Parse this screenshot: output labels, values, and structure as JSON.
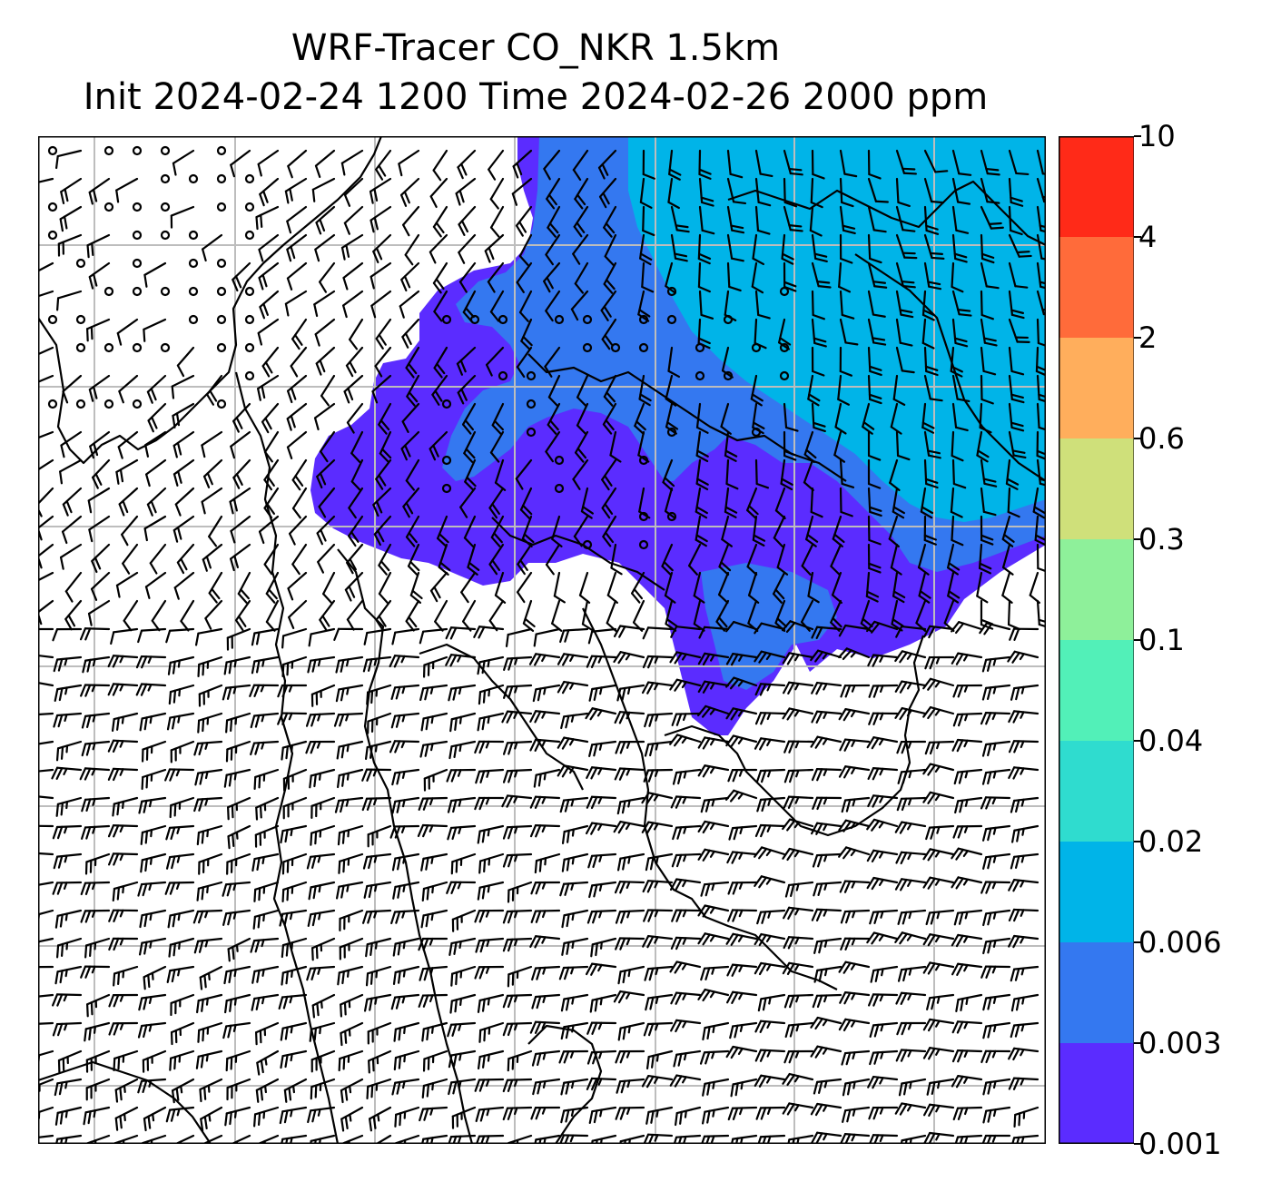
{
  "title_line1": "WRF-Tracer CO_NKR 1.5km",
  "title_line2": "Init 2024-02-24 1200 Time 2024-02-26 2000 ppm",
  "colorbar": {
    "levels": [
      "0.001",
      "0.003",
      "0.006",
      "0.02",
      "0.04",
      "0.1",
      "0.3",
      "0.6",
      "2",
      "4",
      "10"
    ],
    "colors": [
      "#5b2cff",
      "#3478f0",
      "#00b4e8",
      "#2fdccf",
      "#52f0b8",
      "#8ef09a",
      "#cfe07a",
      "#ffae5c",
      "#ff6b3a",
      "#ff2a18"
    ]
  },
  "map": {
    "grid_color": "#bdbdbd",
    "coastline_color": "#000000",
    "barb_color": "#000000",
    "icons": [
      "wind-barb-icon",
      "calm-wind-circle-icon"
    ]
  }
}
